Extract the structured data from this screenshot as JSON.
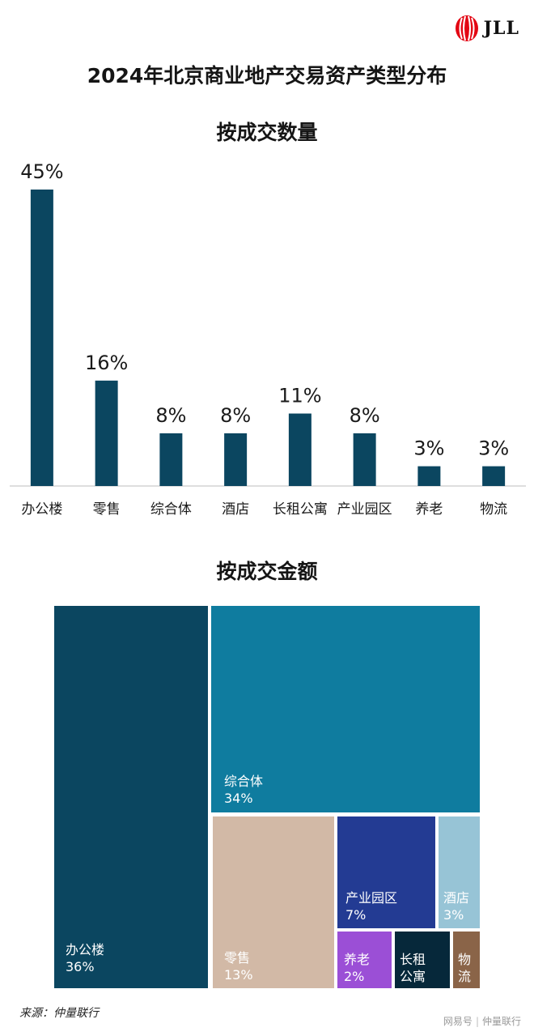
{
  "logo": {
    "text": "JLL",
    "colors": {
      "mark": "#e30613"
    }
  },
  "main_title": "2024年北京商业地产交易资产类型分布",
  "chart_data": [
    {
      "type": "bar",
      "title": "按成交数量",
      "categories": [
        "办公楼",
        "零售",
        "综合体",
        "酒店",
        "长租公寓",
        "产业园区",
        "养老",
        "物流"
      ],
      "values": [
        45,
        16,
        8,
        8,
        11,
        8,
        3,
        3
      ],
      "value_labels": [
        "45%",
        "16%",
        "8%",
        "8%",
        "11%",
        "8%",
        "3%",
        "3%"
      ],
      "unit": "%",
      "ylim": [
        0,
        45
      ],
      "grid": false,
      "legend": "none",
      "color": "#0b4660"
    },
    {
      "type": "treemap",
      "title": "按成交金额",
      "items": [
        {
          "label": "办公楼",
          "value": 36,
          "value_label": "36%",
          "color": "#0b4660"
        },
        {
          "label": "综合体",
          "value": 34,
          "value_label": "34%",
          "color": "#0f7c9f"
        },
        {
          "label": "零售",
          "value": 13,
          "value_label": "13%",
          "color": "#d2b9a6"
        },
        {
          "label": "产业园区",
          "value": 7,
          "value_label": "7%",
          "color": "#233b93"
        },
        {
          "label": "酒店",
          "value": 3,
          "value_label": "3%",
          "color": "#97c4d6"
        },
        {
          "label": "养老",
          "value": 2,
          "value_label": "2%",
          "color": "#9b4fd6"
        },
        {
          "label": "长租公寓",
          "label_lines": [
            "长租",
            "公寓"
          ],
          "value_label": "",
          "color": "#06283a"
        },
        {
          "label": "物流",
          "label_lines": [
            "物",
            "流"
          ],
          "value_label": "",
          "color": "#8a6448"
        }
      ]
    }
  ],
  "source": "来源：仲量联行",
  "watermark": {
    "brand": "网易号",
    "author": "仲量联行"
  }
}
